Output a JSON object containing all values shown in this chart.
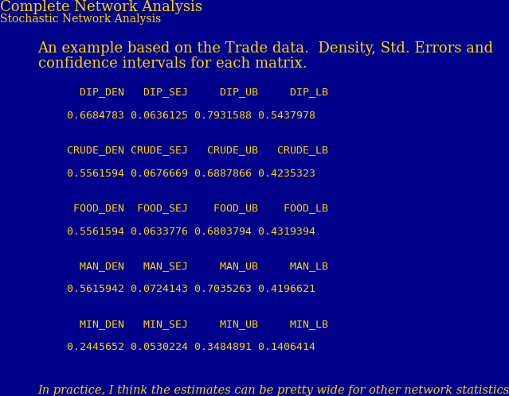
{
  "bg_color": "#00008B",
  "title1": "Complete Network Analysis",
  "title2": "Stochastic Network Analysis",
  "title1_color": "#FFD700",
  "title2_color": "#FFD700",
  "title1_fontsize": 13,
  "title2_fontsize": 10,
  "heading_line1": "An example based on the Trade data.  Density, Std. Errors and",
  "heading_line2": "confidence intervals for each matrix.",
  "heading_color": "#FFD700",
  "heading_fontsize": 13,
  "table_color": "#FFD700",
  "table_fontsize": 9.5,
  "table_blocks": [
    [
      "  DIP_DEN   DIP_SEJ     DIP_UB     DIP_LB",
      "0.6684783 0.0636125 0.7931588 0.5437978"
    ],
    [
      "CRUDE_DEN CRUDE_SEJ   CRUDE_UB   CRUDE_LB",
      "0.5561594 0.0676669 0.6887866 0.4235323"
    ],
    [
      " FOOD_DEN  FOOD_SEJ    FOOD_UB    FOOD_LB",
      "0.5561594 0.0633776 0.6803794 0.4319394"
    ],
    [
      "  MAN_DEN   MAN_SEJ     MAN_UB     MAN_LB",
      "0.5615942 0.0724143 0.7035263 0.4196621"
    ],
    [
      "  MIN_DEN   MIN_SEJ     MIN_UB     MIN_LB",
      "0.2445652 0.0530224 0.3484891 0.1406414"
    ]
  ],
  "footer": "In practice, I think the estimates can be pretty wide for other network statistics",
  "footer_color": "#FFD700",
  "footer_fontsize": 10.5
}
